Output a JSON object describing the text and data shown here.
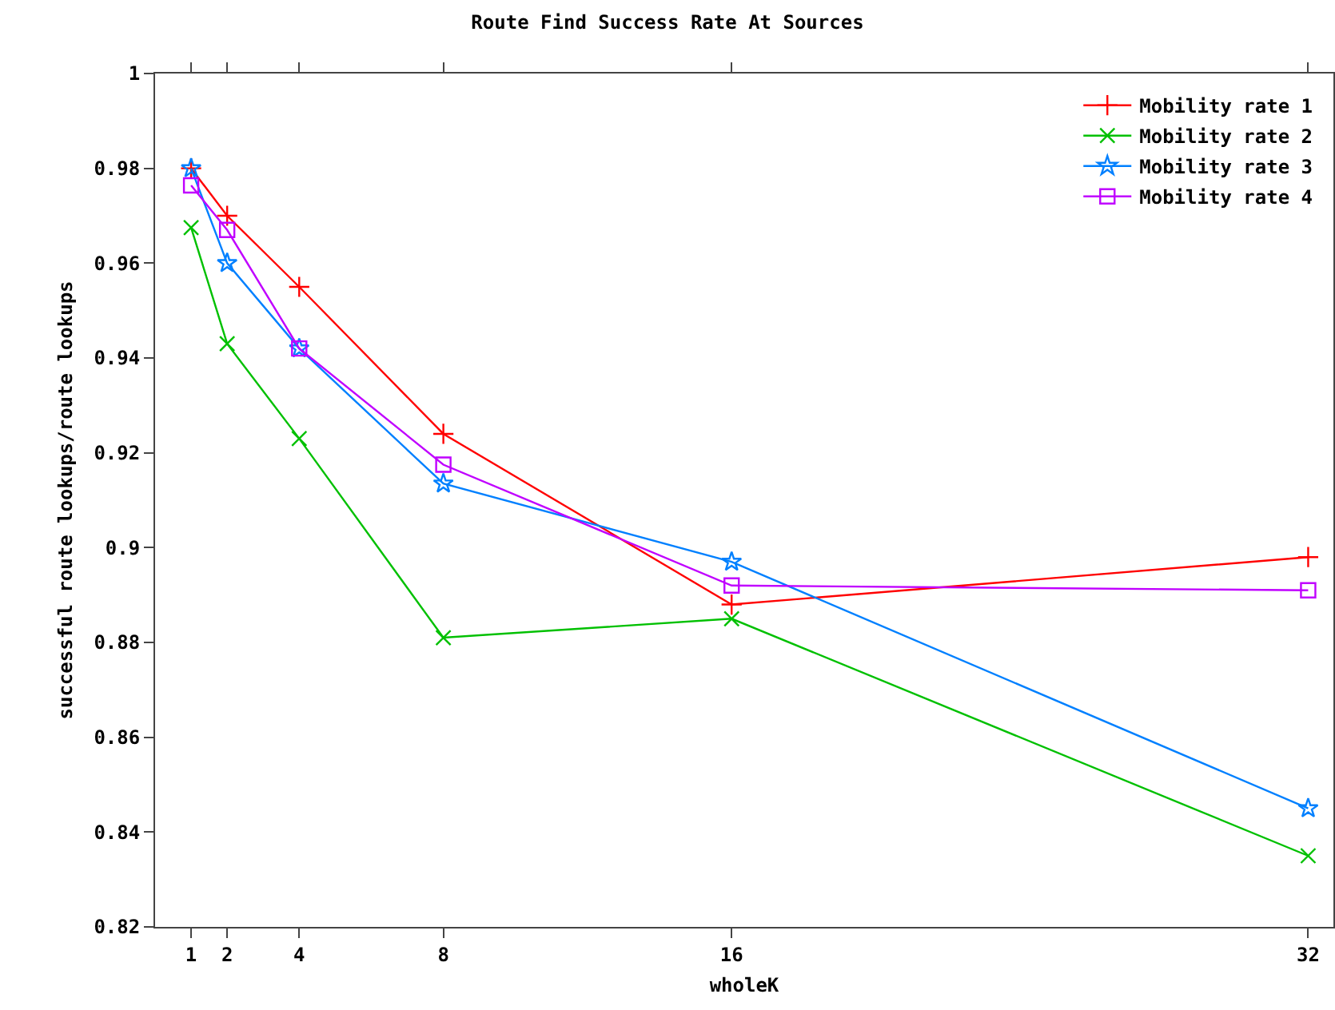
{
  "chart_data": {
    "type": "line",
    "title": "Route Find Success Rate At Sources",
    "xlabel": "wholeK",
    "ylabel": "successful route lookups/route lookups",
    "x": [
      1,
      2,
      4,
      8,
      16,
      32
    ],
    "series": [
      {
        "name": "Mobility rate 1",
        "color": "#ff0000",
        "marker": "cross",
        "values": [
          0.98,
          0.97,
          0.955,
          0.924,
          0.888,
          0.898
        ]
      },
      {
        "name": "Mobility rate 2",
        "color": "#00c000",
        "marker": "x",
        "values": [
          0.9675,
          0.943,
          0.923,
          0.881,
          0.885,
          0.835
        ]
      },
      {
        "name": "Mobility rate 3",
        "color": "#0080ff",
        "marker": "star",
        "values": [
          0.98,
          0.96,
          0.942,
          0.9135,
          0.897,
          0.845
        ]
      },
      {
        "name": "Mobility rate 4",
        "color": "#c000ff",
        "marker": "square",
        "values": [
          0.9764,
          0.967,
          0.942,
          0.9175,
          0.892,
          0.891
        ]
      }
    ],
    "xlim": [
      0,
      32.7
    ],
    "xticks": [
      1,
      2,
      4,
      8,
      16,
      32
    ],
    "ylim": [
      0.82,
      1
    ],
    "yticks": [
      0.82,
      0.84,
      0.86,
      0.88,
      0.9,
      0.92,
      0.94,
      0.96,
      0.98,
      {
        "value": 1,
        "label": "1"
      }
    ],
    "grid": false,
    "legend": "top right",
    "line_style": "solid"
  }
}
